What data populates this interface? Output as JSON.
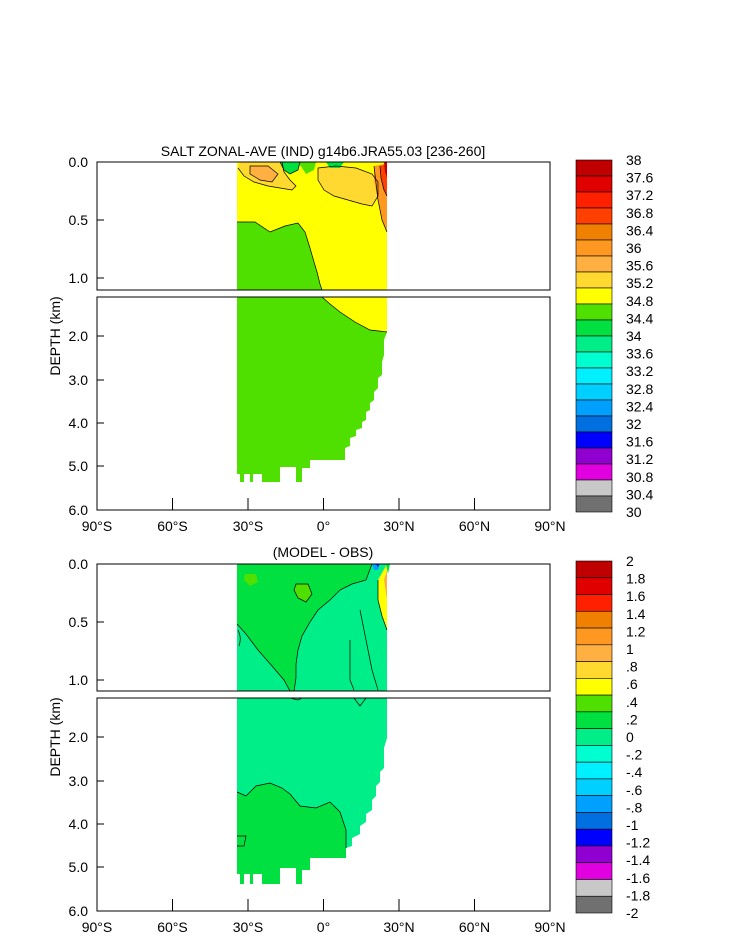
{
  "chart_data": [
    {
      "type": "heatmap",
      "title": "SALT ZONAL-AVE (IND) g14b6.JRA55.03 [236-260]",
      "ylabel": "DEPTH (km)",
      "xlabel": "",
      "x_ticks": [
        "90°S",
        "60°S",
        "30°S",
        "0°",
        "30°N",
        "60°N",
        "90°N"
      ],
      "y_ticks_upper": [
        "0.0",
        "0.5",
        "1.0"
      ],
      "y_ticks_lower": [
        "2.0",
        "3.0",
        "4.0",
        "5.0",
        "6.0"
      ],
      "xlim": [
        -90,
        90
      ],
      "ylim_upper_km": [
        0,
        1.1
      ],
      "ylim_lower_km": [
        1.1,
        6.0
      ],
      "colorbar_labels": [
        "38",
        "37.6",
        "37.2",
        "36.8",
        "36.4",
        "36",
        "35.6",
        "35.2",
        "34.8",
        "34.4",
        "34",
        "33.6",
        "33.2",
        "32.8",
        "32.4",
        "32",
        "31.6",
        "31.2",
        "30.8",
        "30.4",
        "30"
      ],
      "colorbar_colors": [
        "#C00000",
        "#E00000",
        "#FF2000",
        "#FF4000",
        "#F08000",
        "#FF9820",
        "#FFB040",
        "#FFD830",
        "#FFFF00",
        "#50E000",
        "#00E040",
        "#00EE88",
        "#00FFD0",
        "#00F0FF",
        "#00D0FF",
        "#00A0FF",
        "#0070E0",
        "#0000FF",
        "#9000D0",
        "#E000E0",
        "#C8C8C8",
        "#707070"
      ],
      "regions": [
        {
          "name": "salinity 34.4-34.8",
          "value": "34.4-34.8"
        },
        {
          "name": "salinity 34.8-35.2",
          "value": "34.8-35.2"
        },
        {
          "name": "salinity 35.2-35.6",
          "value": "35.2-35.6"
        },
        {
          "name": "salinity 35.6-36",
          "value": "35.6-36"
        }
      ]
    },
    {
      "type": "heatmap",
      "title": "(MODEL - OBS)",
      "ylabel": "DEPTH (km)",
      "xlabel": "",
      "x_ticks": [
        "90°S",
        "60°S",
        "30°S",
        "0°",
        "30°N",
        "60°N",
        "90°N"
      ],
      "y_ticks_upper": [
        "0.0",
        "0.5",
        "1.0"
      ],
      "y_ticks_lower": [
        "2.0",
        "3.0",
        "4.0",
        "5.0",
        "6.0"
      ],
      "xlim": [
        -90,
        90
      ],
      "ylim_upper_km": [
        0,
        1.1
      ],
      "ylim_lower_km": [
        1.1,
        6.0
      ],
      "colorbar_labels": [
        "2",
        "1.8",
        "1.6",
        "1.4",
        "1.2",
        "1",
        ".8",
        ".6",
        ".4",
        ".2",
        "0",
        "-.2",
        "-.4",
        "-.6",
        "-.8",
        "-1",
        "-1.2",
        "-1.4",
        "-1.6",
        "-1.8",
        "-2"
      ],
      "colorbar_colors": [
        "#C00000",
        "#E00000",
        "#FF2000",
        "#F08000",
        "#FF9820",
        "#FFB040",
        "#FFD830",
        "#FFFF00",
        "#50E000",
        "#00E040",
        "#00EE88",
        "#00FFD0",
        "#00F0FF",
        "#00D0FF",
        "#00A0FF",
        "#0070E0",
        "#0000FF",
        "#9000D0",
        "#E000E0",
        "#C8C8C8",
        "#707070"
      ],
      "regions": [
        {
          "name": "difference -0.2-0",
          "value": "-0.2-0"
        },
        {
          "name": "difference 0-0.2",
          "value": "0-0.2"
        },
        {
          "name": "difference 0.2-0.4",
          "value": "0.2-0.4"
        }
      ]
    }
  ]
}
